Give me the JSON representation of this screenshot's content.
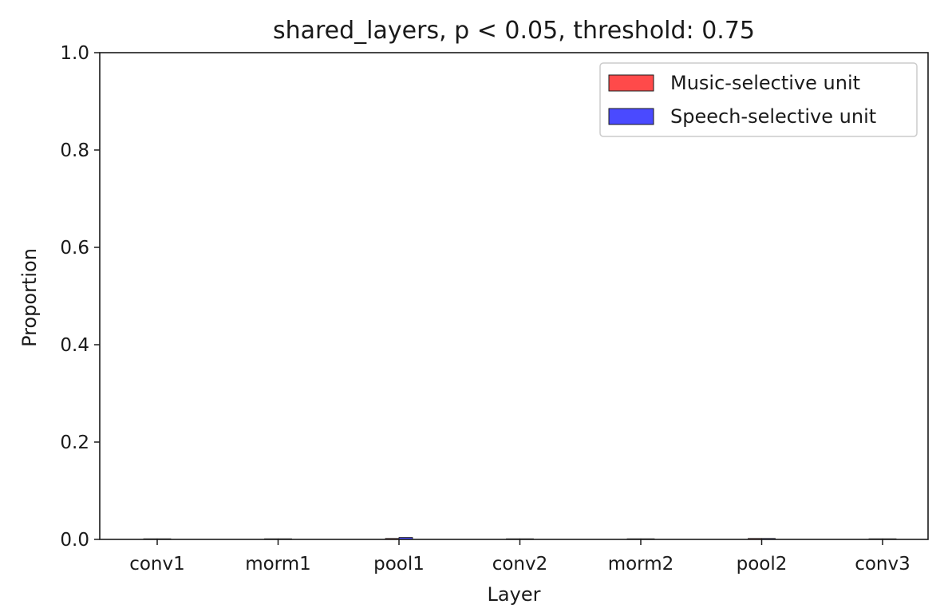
{
  "chart_data": {
    "type": "bar",
    "title": "shared_layers, p < 0.05, threshold: 0.75",
    "xlabel": "Layer",
    "ylabel": "Proportion",
    "categories": [
      "conv1",
      "morm1",
      "pool1",
      "conv2",
      "morm2",
      "pool2",
      "conv3"
    ],
    "ylim": [
      0,
      1.0
    ],
    "yticks": [
      0.0,
      0.2,
      0.4,
      0.6,
      0.8,
      1.0
    ],
    "ytick_labels": [
      "0.0",
      "0.2",
      "0.4",
      "0.6",
      "0.8",
      "1.0"
    ],
    "grid": false,
    "legend_position": "top-right",
    "series": [
      {
        "name": "Music-selective unit",
        "color": "#ff2a2a",
        "values": [
          0.0,
          0.0,
          0.002,
          0.0,
          0.0,
          0.002,
          0.0
        ]
      },
      {
        "name": "Speech-selective unit",
        "color": "#2a2aff",
        "values": [
          0.0,
          0.0,
          0.004,
          0.0,
          0.0,
          0.002,
          0.0
        ]
      }
    ]
  }
}
